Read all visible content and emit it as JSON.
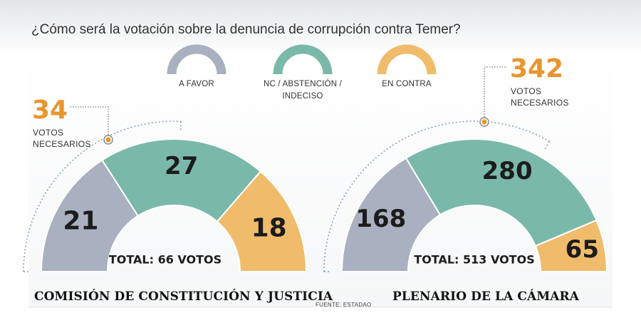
{
  "title": "¿Cómo será la votación sobre la denuncia de corrupción contra Temer?",
  "colors": {
    "favor": "#a9b0bf",
    "nc": "#7ab9a9",
    "contra": "#f0bc6b",
    "accent": "#e8962e",
    "dotted": "#8aa0b8"
  },
  "legend": [
    {
      "key": "favor",
      "label": "A FAVOR"
    },
    {
      "key": "nc",
      "label": "NC / ABSTENCIÓN /\nINDECISO"
    },
    {
      "key": "contra",
      "label": "EN CONTRA"
    }
  ],
  "chart_data": [
    {
      "type": "pie",
      "variant": "semicircle",
      "title": "COMISIÓN DE CONSTITUCIÓN Y JUSTICIA",
      "categories": [
        "A FAVOR",
        "NC / ABSTENCIÓN / INDECISO",
        "EN CONTRA"
      ],
      "values": [
        21,
        27,
        18
      ],
      "total_label": "TOTAL: 66 VOTOS",
      "total": 66,
      "needed_value": "34",
      "needed_label": "VOTOS\nNECESARIOS",
      "needed": 34
    },
    {
      "type": "pie",
      "variant": "semicircle",
      "title": "PLENARIO DE LA CÁMARA",
      "categories": [
        "A FAVOR",
        "NC / ABSTENCIÓN / INDECISO",
        "EN CONTRA"
      ],
      "values": [
        168,
        280,
        65
      ],
      "total_label": "TOTAL: 513 VOTOS",
      "total": 513,
      "needed_value": "342",
      "needed_label": "VOTOS\nNECESARIOS",
      "needed": 342
    }
  ],
  "source": "FUENTE: ESTADAO"
}
